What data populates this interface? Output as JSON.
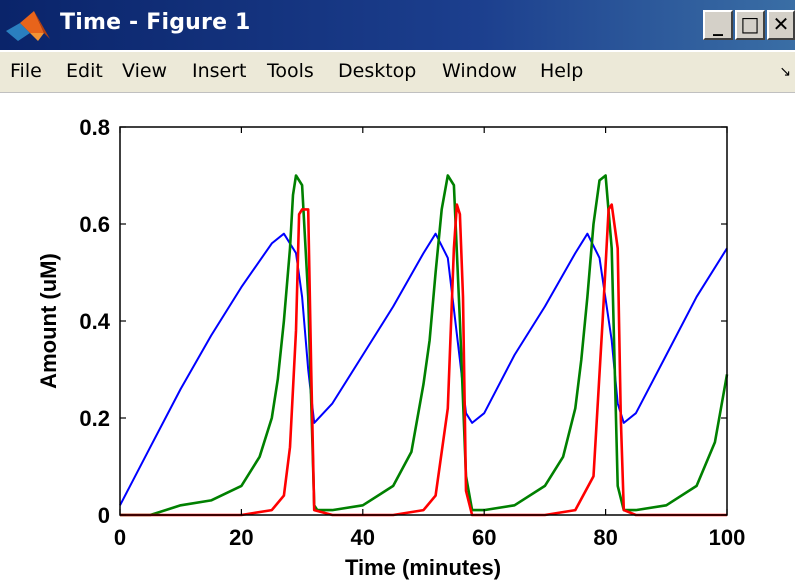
{
  "window": {
    "title": "Time - Figure 1",
    "controls": {
      "minimize": "_",
      "maximize": "□",
      "close": "✕"
    }
  },
  "menu": {
    "items": [
      "File",
      "Edit",
      "View",
      "Insert",
      "Tools",
      "Desktop",
      "Window",
      "Help"
    ]
  },
  "colors": {
    "titlebar": "#0a246a",
    "series_blue": "#0000ff",
    "series_green": "#008000",
    "series_red": "#ff0000"
  },
  "chart_data": {
    "type": "line",
    "title": "",
    "xlabel": "Time (minutes)",
    "ylabel": "Amount (uM)",
    "xlim": [
      0,
      100
    ],
    "ylim": [
      0,
      0.8
    ],
    "xticks": [
      0,
      20,
      40,
      60,
      80,
      100
    ],
    "xtick_labels": [
      "0",
      "20",
      "40",
      "60",
      "80",
      "100"
    ],
    "yticks": [
      0,
      0.2,
      0.4,
      0.6,
      0.8
    ],
    "ytick_labels": [
      "0",
      "0.2",
      "0.4",
      "0.6",
      "0.8"
    ],
    "grid": false,
    "legend": "none",
    "series": [
      {
        "color": "#0000ff",
        "x": [
          0,
          5,
          10,
          15,
          20,
          25,
          27,
          29,
          30,
          31,
          32,
          35,
          40,
          45,
          50,
          52,
          54,
          56,
          57,
          58,
          60,
          65,
          70,
          75,
          77,
          79,
          81,
          82,
          83,
          85,
          90,
          95,
          100
        ],
        "y": [
          0.02,
          0.14,
          0.26,
          0.37,
          0.47,
          0.56,
          0.58,
          0.54,
          0.45,
          0.3,
          0.19,
          0.23,
          0.33,
          0.43,
          0.54,
          0.58,
          0.53,
          0.32,
          0.21,
          0.19,
          0.21,
          0.33,
          0.43,
          0.54,
          0.58,
          0.53,
          0.36,
          0.23,
          0.19,
          0.21,
          0.33,
          0.45,
          0.55
        ]
      },
      {
        "color": "#008000",
        "x": [
          0,
          5,
          10,
          15,
          20,
          23,
          25,
          26,
          27,
          28,
          28.5,
          29,
          30,
          31,
          32,
          32.5,
          35,
          40,
          45,
          48,
          50,
          51,
          52,
          53,
          54,
          55,
          56,
          57,
          58,
          60,
          65,
          70,
          73,
          75,
          76,
          77,
          78,
          79,
          80,
          81,
          82,
          83,
          85,
          90,
          95,
          98,
          100
        ],
        "y": [
          0,
          0,
          0.02,
          0.03,
          0.06,
          0.12,
          0.2,
          0.28,
          0.4,
          0.55,
          0.66,
          0.7,
          0.68,
          0.45,
          0.02,
          0.01,
          0.01,
          0.02,
          0.06,
          0.13,
          0.27,
          0.36,
          0.5,
          0.63,
          0.7,
          0.68,
          0.4,
          0.08,
          0.01,
          0.01,
          0.02,
          0.06,
          0.12,
          0.22,
          0.32,
          0.45,
          0.6,
          0.69,
          0.7,
          0.55,
          0.06,
          0.01,
          0.01,
          0.02,
          0.06,
          0.15,
          0.29
        ]
      },
      {
        "color": "#ff0000",
        "x": [
          0,
          10,
          20,
          25,
          27,
          28,
          29,
          29.5,
          30,
          31,
          31.5,
          32,
          35,
          45,
          50,
          52,
          54,
          55,
          55.5,
          56,
          56.5,
          57,
          58,
          60,
          70,
          75,
          78,
          79.5,
          80.5,
          81,
          82,
          82.5,
          83,
          85,
          100
        ],
        "y": [
          0,
          0,
          0,
          0.01,
          0.04,
          0.14,
          0.38,
          0.62,
          0.63,
          0.63,
          0.3,
          0.01,
          0,
          0,
          0.01,
          0.04,
          0.22,
          0.55,
          0.64,
          0.62,
          0.45,
          0.05,
          0,
          0,
          0,
          0.01,
          0.08,
          0.4,
          0.63,
          0.64,
          0.55,
          0.2,
          0.01,
          0,
          0
        ]
      }
    ]
  }
}
